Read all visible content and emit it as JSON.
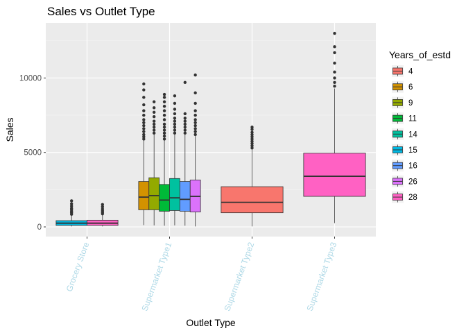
{
  "chart_data": {
    "type": "boxplot",
    "title": "Sales vs Outlet Type",
    "xlabel": "Outlet Type",
    "ylabel": "Sales",
    "ylim": [
      -650,
      13700
    ],
    "y_ticks": [
      0,
      5000,
      10000
    ],
    "grid": true,
    "legend": {
      "title": "Years_of_estd",
      "placement": "right",
      "entries": [
        {
          "label": "4",
          "color": "#F8766D"
        },
        {
          "label": "6",
          "color": "#D39200"
        },
        {
          "label": "9",
          "color": "#93AA00"
        },
        {
          "label": "11",
          "color": "#00BA38"
        },
        {
          "label": "14",
          "color": "#00C19F"
        },
        {
          "label": "15",
          "color": "#00B9E3"
        },
        {
          "label": "16",
          "color": "#619CFF"
        },
        {
          "label": "26",
          "color": "#DB72FB"
        },
        {
          "label": "28",
          "color": "#FF61C3"
        }
      ]
    },
    "categories": [
      "Grocery Store",
      "Supermarket Type1",
      "Supermarket Type2",
      "Supermarket Type3"
    ],
    "groups": [
      {
        "category": "Grocery Store",
        "boxes": [
          {
            "series": "15",
            "color": "#00B9E3",
            "min": 30,
            "q1": 100,
            "median": 250,
            "q3": 420,
            "max": 800,
            "outliers": [
              850,
              950,
              1050,
              1150,
              1250,
              1400,
              1550,
              1750
            ]
          },
          {
            "series": "28",
            "color": "#FF61C3",
            "min": 30,
            "q1": 100,
            "median": 250,
            "q3": 450,
            "max": 820,
            "outliers": [
              880,
              980,
              1080,
              1200,
              1350,
              1500
            ]
          }
        ]
      },
      {
        "category": "Supermarket Type1",
        "boxes": [
          {
            "series": "6",
            "color": "#D39200",
            "min": 120,
            "q1": 1150,
            "median": 2000,
            "q3": 3050,
            "max": 5800,
            "outliers": [
              5900,
              6050,
              6200,
              6400,
              6600,
              6800,
              7000,
              7200,
              7500,
              7800,
              8200,
              8700,
              9200,
              9600
            ]
          },
          {
            "series": "9",
            "color": "#93AA00",
            "min": 100,
            "q1": 1150,
            "median": 2100,
            "q3": 3300,
            "max": 6200,
            "outliers": [
              6300,
              6500,
              6700,
              6900,
              7100,
              7400,
              7700,
              8000,
              8400
            ]
          },
          {
            "series": "11",
            "color": "#00BA38",
            "min": 80,
            "q1": 1050,
            "median": 1800,
            "q3": 2850,
            "max": 5800,
            "outliers": [
              5900,
              6100,
              6300,
              6500,
              6700,
              6900,
              7200,
              7500,
              7800,
              8100,
              8400,
              8700,
              8900
            ]
          },
          {
            "series": "14",
            "color": "#00C19F",
            "min": 100,
            "q1": 1100,
            "median": 1950,
            "q3": 3250,
            "max": 6200,
            "outliers": [
              6300,
              6500,
              6700,
              6900,
              7100,
              7300,
              7600,
              7900,
              8300,
              8800
            ]
          },
          {
            "series": "16",
            "color": "#619CFF",
            "min": 80,
            "q1": 1050,
            "median": 1850,
            "q3": 3050,
            "max": 6200,
            "outliers": [
              6300,
              6500,
              6700,
              6900,
              7100,
              7300,
              7600,
              9700
            ]
          },
          {
            "series": "26",
            "color": "#DB72FB",
            "min": 30,
            "q1": 1000,
            "median": 2050,
            "q3": 3150,
            "max": 6100,
            "outliers": [
              6200,
              6400,
              6600,
              6800,
              7000,
              7200,
              7500,
              7800,
              8300,
              9000,
              10200
            ]
          }
        ]
      },
      {
        "category": "Supermarket Type2",
        "boxes": [
          {
            "series": "4",
            "color": "#F8766D",
            "min": 30,
            "q1": 950,
            "median": 1650,
            "q3": 2700,
            "max": 5200,
            "outliers": [
              5300,
              5450,
              5600,
              5750,
              5900,
              6050,
              6200,
              6350,
              6550,
              6700
            ]
          }
        ]
      },
      {
        "category": "Supermarket Type3",
        "boxes": [
          {
            "series": "28",
            "color": "#FF61C3",
            "min": 250,
            "q1": 2050,
            "median": 3400,
            "q3": 4950,
            "max": 9300,
            "outliers": [
              9450,
              9700,
              10000,
              10400,
              11000,
              11700,
              12100,
              13000
            ]
          }
        ]
      }
    ]
  }
}
